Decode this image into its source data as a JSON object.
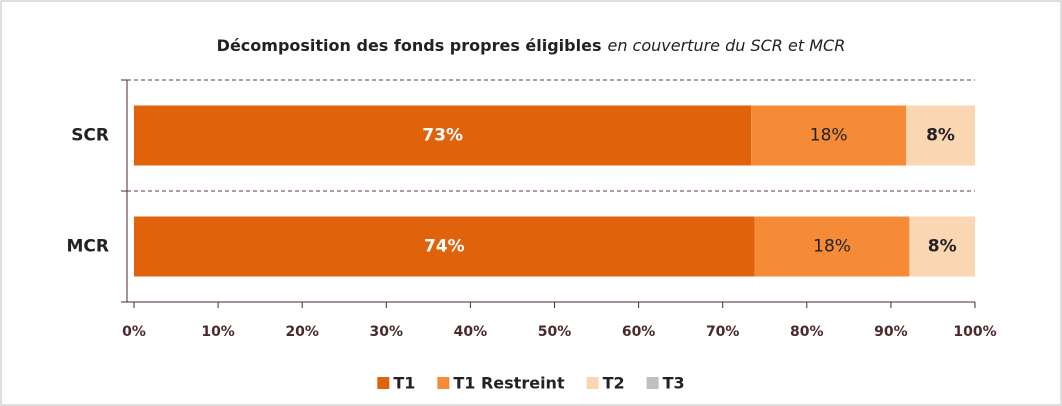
{
  "chart_data": {
    "type": "stacked-barh",
    "title": "Décomposition des fonds propres éligibles",
    "subtitle": "en couverture du SCR et MCR",
    "categories": [
      "SCR",
      "MCR"
    ],
    "series": [
      {
        "name": "T1",
        "color": "#e0620b",
        "values": [
          73.4,
          73.8
        ],
        "value_labels": [
          "73%",
          "74%"
        ]
      },
      {
        "name": "T1 Restreint",
        "color": "#f58b36",
        "values": [
          18.4,
          18.4
        ],
        "value_labels": [
          "18%",
          "18%"
        ]
      },
      {
        "name": "T2",
        "color": "#fbd6b2",
        "values": [
          8.2,
          7.8
        ],
        "value_labels": [
          "8%",
          "8%"
        ]
      },
      {
        "name": "T3",
        "color": "#bfbfbf",
        "values": [
          0,
          0
        ],
        "value_labels": [
          null,
          null
        ]
      }
    ],
    "xlim": [
      0,
      100
    ],
    "xticks": [
      {
        "value": 0,
        "label": "0%"
      },
      {
        "value": 10,
        "label": "10%"
      },
      {
        "value": 20,
        "label": "20%"
      },
      {
        "value": 30,
        "label": "30%"
      },
      {
        "value": 40,
        "label": "40%"
      },
      {
        "value": 50,
        "label": "50%"
      },
      {
        "value": 60,
        "label": "60%"
      },
      {
        "value": 70,
        "label": "70%"
      },
      {
        "value": 80,
        "label": "80%"
      },
      {
        "value": 90,
        "label": "90%"
      },
      {
        "value": 100,
        "label": "100%"
      }
    ],
    "legend": "bottom"
  }
}
